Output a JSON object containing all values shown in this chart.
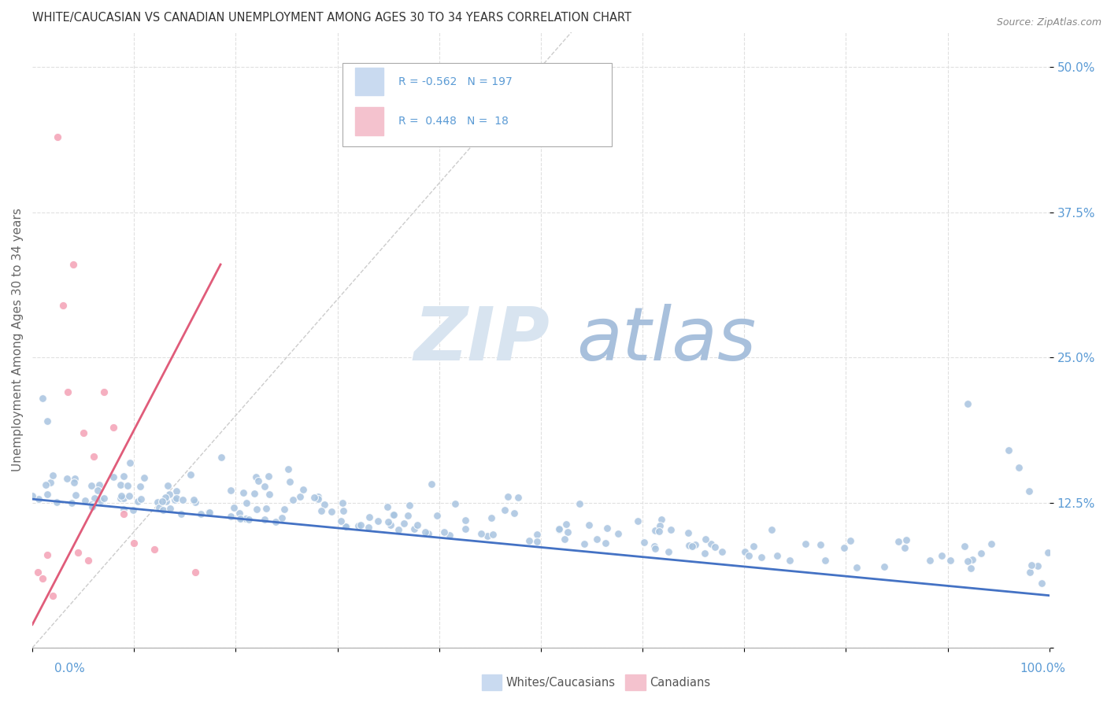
{
  "title": "WHITE/CAUCASIAN VS CANADIAN UNEMPLOYMENT AMONG AGES 30 TO 34 YEARS CORRELATION CHART",
  "source": "Source: ZipAtlas.com",
  "ylabel": "Unemployment Among Ages 30 to 34 years",
  "ytick_labels": [
    "",
    "12.5%",
    "25.0%",
    "37.5%",
    "50.0%"
  ],
  "ytick_values": [
    0.0,
    0.125,
    0.25,
    0.375,
    0.5
  ],
  "xlim": [
    0.0,
    1.0
  ],
  "ylim": [
    0.0,
    0.53
  ],
  "white_color": "#a8c4e0",
  "white_line_color": "#4472c4",
  "canadian_color": "#f4a7b9",
  "canadian_line_color": "#e05c7a",
  "legend_box_white": "#c9daf0",
  "legend_box_canadian": "#f4c2ce",
  "watermark_zip_color": "#d8e4f0",
  "watermark_atlas_color": "#a8c0dc",
  "grid_color": "#e0e0e0",
  "title_color": "#333333",
  "axis_label_color": "#5b9bd5",
  "white_trend_x": [
    0.0,
    1.0
  ],
  "white_trend_y": [
    0.128,
    0.045
  ],
  "canadian_trend_x": [
    0.0,
    0.185
  ],
  "canadian_trend_y": [
    0.02,
    0.33
  ],
  "ref_line_x": [
    0.0,
    0.53
  ],
  "ref_line_y": [
    0.0,
    0.53
  ]
}
